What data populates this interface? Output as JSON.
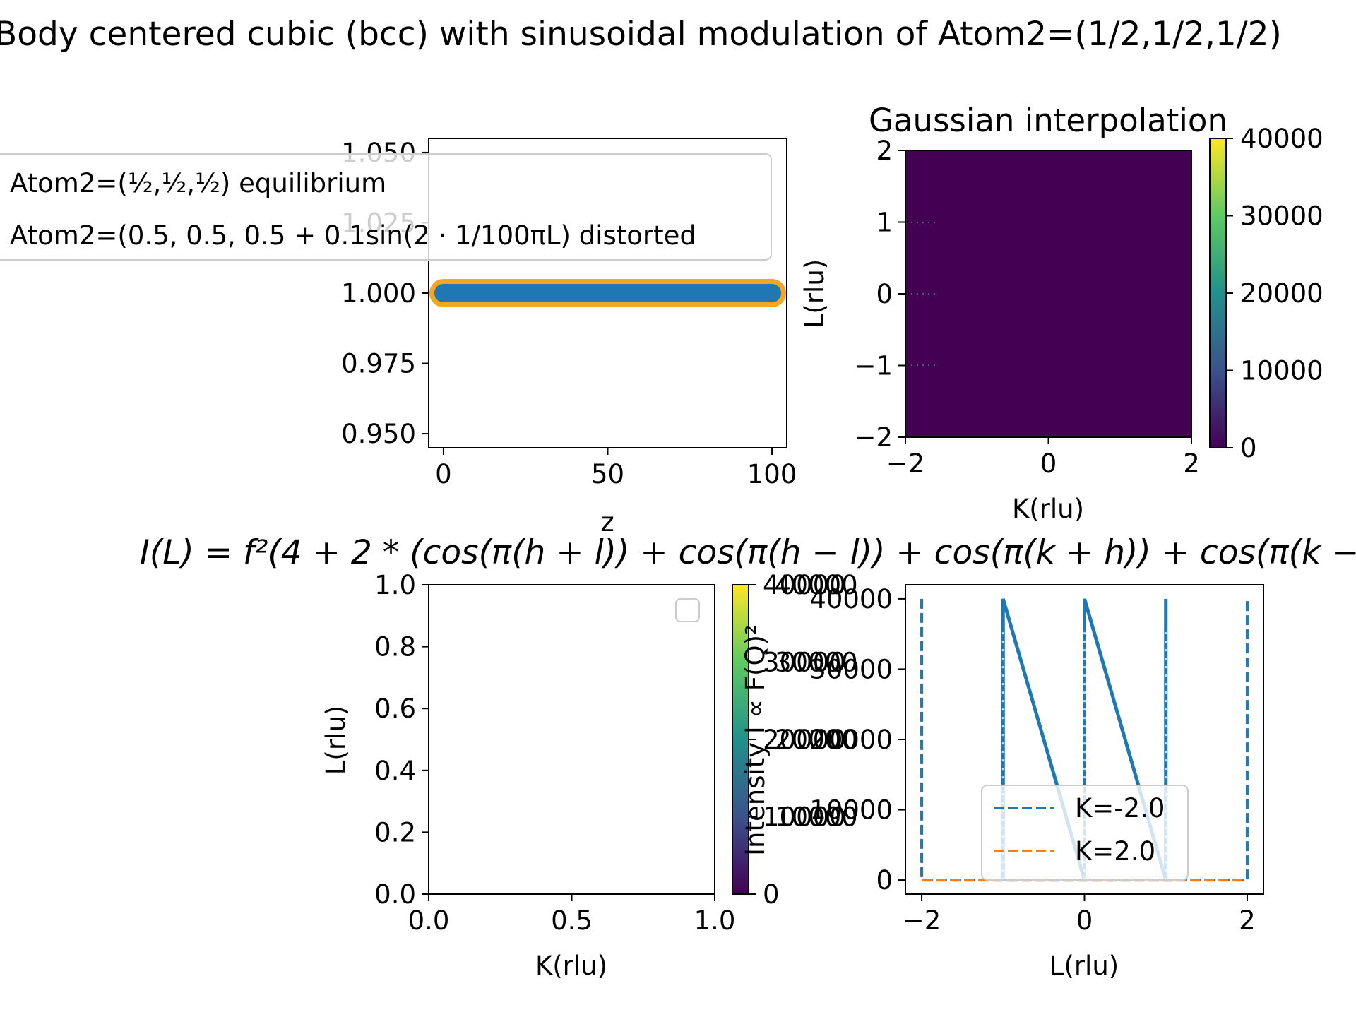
{
  "figure": {
    "suptitle": "Body centered cubic (bcc) with sinusoidal modulation of Atom2=(1/2,1/2,1/2)",
    "formula": "I(L) = f²(4 + 2 * (cos(π(h + l)) + cos(π(h − l)) + cos(π(k + h)) + cos(π(k −"
  },
  "colors": {
    "blue": "#1f77b4",
    "orange": "#ff7f0e",
    "gold": "#f5a623",
    "viridis_low": "#440154",
    "viridis_high": "#fde725"
  },
  "chart_data": [
    {
      "id": "modulation",
      "type": "line",
      "xlabel": "z",
      "ylabel": "",
      "xlim": [
        -4.5,
        104.5
      ],
      "ylim": [
        0.945,
        1.055
      ],
      "xticks": [
        "0",
        "50",
        "100"
      ],
      "yticks": [
        "0.950",
        "0.975",
        "1.000",
        "1.025",
        "1.050"
      ],
      "legend": {
        "position": "upper-left",
        "entries": [
          "Atom2=(½,½,½) equilibrium",
          "Atom2=(0.5, 0.5, 0.5 + 0.1sin(2 · 1/100πL) distorted"
        ]
      },
      "series": [
        {
          "name": "Atom2=(½,½,½) equilibrium",
          "x": [
            0,
            100
          ],
          "y": [
            1.0,
            1.0
          ],
          "color": "#f5a623"
        },
        {
          "name": "Atom2=(0.5, 0.5, 0.5 + 0.1sin(2 · 1/100πL) distorted",
          "x": [
            0,
            100
          ],
          "y": [
            1.0,
            1.0
          ],
          "color": "#1f77b4"
        }
      ]
    },
    {
      "id": "gaussian",
      "type": "heatmap",
      "title": "Gaussian interpolation",
      "xlabel": "K(rlu)",
      "ylabel": "L(rlu)",
      "xlim": [
        -2,
        2
      ],
      "ylim": [
        -2,
        2
      ],
      "xticks": [
        "−2",
        "0",
        "2"
      ],
      "yticks": [
        "−2",
        "−1",
        "0",
        "1",
        "2"
      ],
      "colorbar": {
        "min": 0,
        "max": 40000,
        "ticks": [
          "0",
          "10000",
          "20000",
          "30000",
          "40000"
        ]
      },
      "values": "uniform ≈ 0"
    },
    {
      "id": "empty-map",
      "type": "heatmap",
      "xlabel": "K(rlu)",
      "ylabel": "L(rlu)",
      "xlim": [
        0,
        1
      ],
      "ylim": [
        0,
        1
      ],
      "xticks": [
        "0.0",
        "0.5",
        "1.0"
      ],
      "yticks": [
        "0.0",
        "0.2",
        "0.4",
        "0.6",
        "0.8",
        "1.0"
      ],
      "colorbar": {
        "label": "Intensity I ∝ F(Q)²",
        "min": 0,
        "max": 40000,
        "ticks": [
          "0",
          "10000",
          "20000",
          "30000",
          "40000"
        ]
      },
      "values": "empty"
    },
    {
      "id": "line-cuts",
      "type": "line",
      "xlabel": "L(rlu)",
      "ylabel": "",
      "xlim": [
        -2.2,
        2.2
      ],
      "ylim": [
        -2000,
        42000
      ],
      "xticks": [
        "−2",
        "0",
        "2"
      ],
      "yticks": [
        "0",
        "10000",
        "20000",
        "30000",
        "40000"
      ],
      "overlay_ticks": [
        "10000",
        "20000",
        "30000",
        "40000"
      ],
      "legend": {
        "position": "lower-center",
        "entries": [
          "K=-2.0",
          "K=2.0"
        ]
      },
      "series": [
        {
          "name": "K=-2.0",
          "style": "dashed",
          "color": "#1f77b4",
          "x": [
            -2,
            -2,
            -1.99,
            1.99,
            2,
            2
          ],
          "y": [
            40000,
            0,
            0,
            0,
            0,
            40000
          ]
        },
        {
          "name": "K=2.0",
          "style": "dashed",
          "color": "#ff7f0e",
          "x": [
            -2,
            2
          ],
          "y": [
            0,
            0
          ]
        },
        {
          "name": "",
          "style": "solid",
          "color": "#1f77b4",
          "x": [
            -1,
            -1,
            0,
            0,
            1,
            1
          ],
          "y": [
            0,
            40000,
            0,
            40000,
            0,
            40000
          ]
        }
      ]
    }
  ]
}
